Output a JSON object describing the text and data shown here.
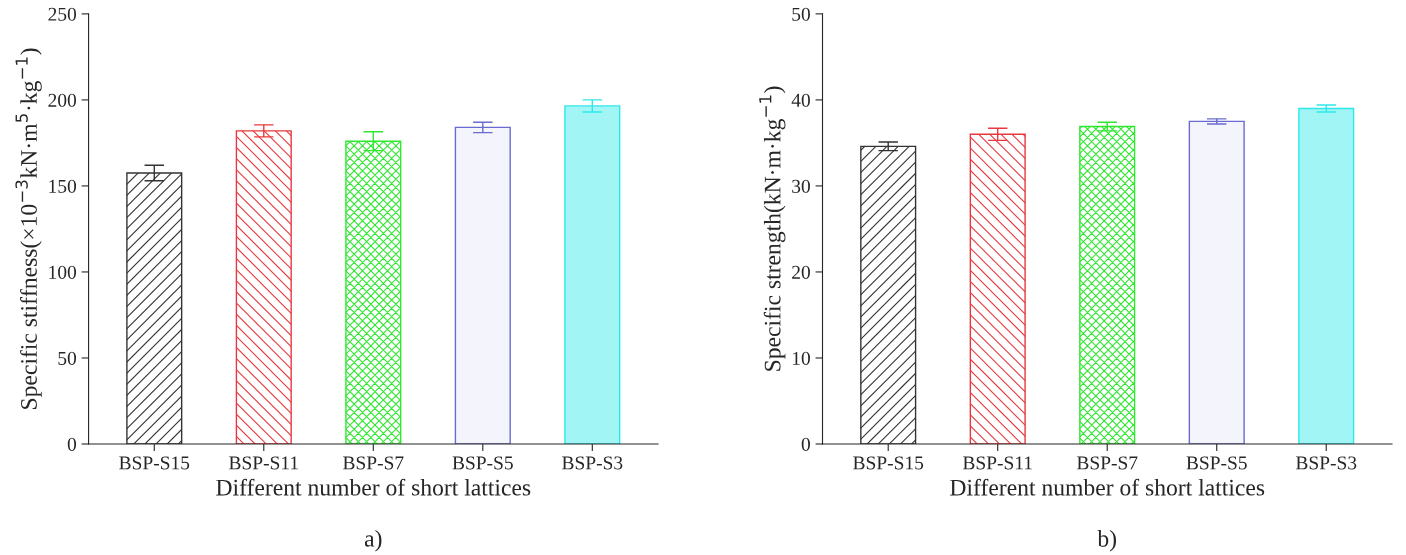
{
  "chart_data": [
    {
      "type": "bar",
      "categories": [
        "BSP-S15",
        "BSP-S11",
        "BSP-S7",
        "BSP-S5",
        "BSP-S3"
      ],
      "values": [
        157.5,
        182,
        176,
        184,
        196.5
      ],
      "errors": [
        4.5,
        3.5,
        5.5,
        3,
        3.5
      ],
      "colors": [
        "#333333",
        "#e8383d",
        "#2ee82e",
        "#6a6ad0",
        "#2ee8e8"
      ],
      "ylim": [
        0,
        250
      ],
      "yticks": [
        0,
        50,
        100,
        150,
        200,
        250
      ],
      "xlabel": "Different number of short lattices",
      "ylabel": "Specific stiffness(×10$^{−3}$kN·m$^{5}$·kg$^{−1}$)",
      "annotations": [
        "a)"
      ]
    },
    {
      "type": "bar",
      "categories": [
        "BSP-S15",
        "BSP-S11",
        "BSP-S7",
        "BSP-S5",
        "BSP-S3"
      ],
      "values": [
        34.6,
        36.0,
        36.9,
        37.5,
        39.0
      ],
      "errors": [
        0.5,
        0.7,
        0.5,
        0.3,
        0.4
      ],
      "colors": [
        "#333333",
        "#e8383d",
        "#2ee82e",
        "#6a6ad0",
        "#2ee8e8"
      ],
      "ylim": [
        0,
        50
      ],
      "yticks": [
        0,
        10,
        20,
        30,
        40,
        50
      ],
      "xlabel": "Different number of short lattices",
      "ylabel": "Specific strength(kN·m·kg$^{−1}$)",
      "annotations": [
        "b)"
      ]
    }
  ]
}
